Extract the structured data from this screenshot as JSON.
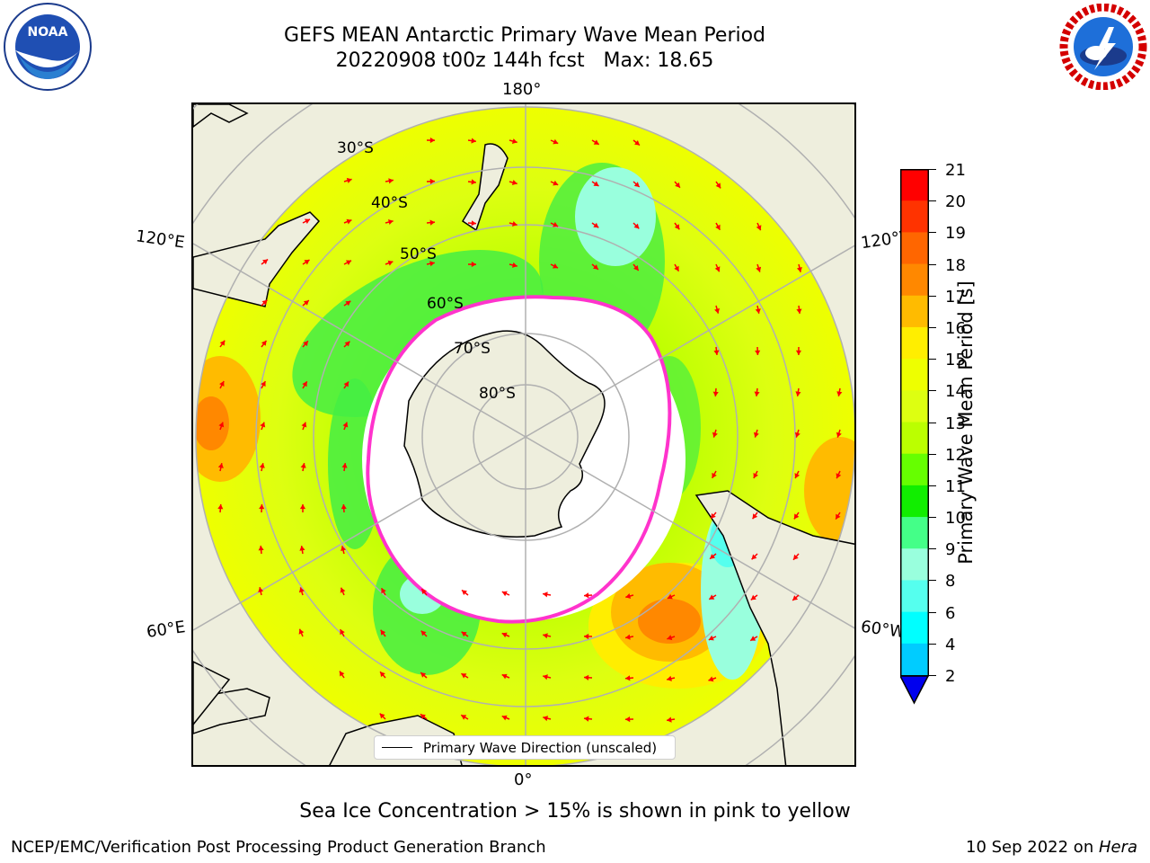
{
  "title": {
    "line1": "GEFS MEAN Antarctic Primary Wave Mean Period",
    "line2": "20220908 t00z 144h fcst   Max: 18.65"
  },
  "map": {
    "projection": "south-polar-stereographic",
    "longitude_labels": {
      "top": "180°",
      "bottom": "0°",
      "left_upper": "120°E",
      "left_lower": "60°E",
      "right_upper": "120°W",
      "right_lower": "60°W"
    },
    "latitude_labels": [
      "30°S",
      "40°S",
      "50°S",
      "60°S",
      "70°S",
      "80°S"
    ],
    "legend_label": "Primary Wave Direction (unscaled)",
    "arrow_color": "#ff0000",
    "sea_ice_color": "#ff33cc",
    "land_color": "#eeeedd"
  },
  "colorbar": {
    "title": "Primary Wave Mean Period [s]",
    "ticks": [
      "21",
      "20",
      "19",
      "18",
      "17",
      "16",
      "15",
      "14",
      "13",
      "12",
      "11",
      "10",
      "9",
      "8",
      "6",
      "4",
      "2"
    ],
    "colors": [
      "#ff0000",
      "#ff3300",
      "#ff6600",
      "#ff8800",
      "#ffbb00",
      "#ffee00",
      "#eeff00",
      "#ddff11",
      "#bbff00",
      "#66ff00",
      "#11ee00",
      "#44ff88",
      "#99ffdd",
      "#55ffee",
      "#00ffff",
      "#00ccff",
      "#0066ff",
      "#0000ee"
    ]
  },
  "footnote": "Sea Ice Concentration > 15% is shown in pink to yellow",
  "credit": "NCEP/EMC/Verification Post Processing Product Generation Branch",
  "date": {
    "text": "10 Sep 2022 on ",
    "host": "Hera"
  },
  "logos": {
    "left": "NOAA",
    "right": "NATIONAL WEATHER SERVICE"
  }
}
